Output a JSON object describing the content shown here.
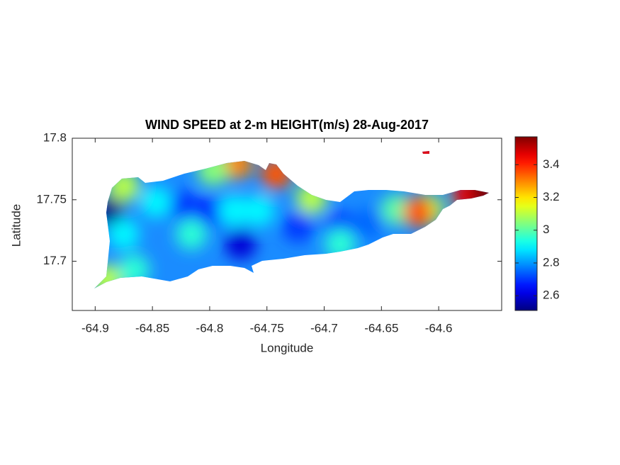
{
  "chart_data": {
    "type": "contour-map",
    "title": "WIND SPEED at 2-m HEIGHT(m/s) 28-Aug-2017",
    "xlabel": "Longitude",
    "ylabel": "Latitude",
    "xlim": [
      -64.92,
      -64.545
    ],
    "ylim": [
      17.66,
      17.8
    ],
    "xticks": [
      -64.9,
      -64.85,
      -64.8,
      -64.75,
      -64.7,
      -64.65,
      -64.6
    ],
    "yticks": [
      17.7,
      17.75,
      17.8
    ],
    "clim": [
      2.51,
      3.57
    ],
    "cticks": [
      2.6,
      2.8,
      3,
      3.2,
      3.4
    ],
    "colormap": "jet",
    "points": [
      {
        "lon": -64.888,
        "lat": 17.742,
        "value": 2.52
      },
      {
        "lon": -64.797,
        "lat": 17.74,
        "value": 2.65
      },
      {
        "lon": -64.773,
        "lat": 17.714,
        "value": 2.6
      },
      {
        "lon": -64.822,
        "lat": 17.745,
        "value": 2.7
      },
      {
        "lon": -64.723,
        "lat": 17.728,
        "value": 2.7
      },
      {
        "lon": -64.686,
        "lat": 17.728,
        "value": 2.7
      },
      {
        "lon": -64.661,
        "lat": 17.731,
        "value": 2.75
      },
      {
        "lon": -64.779,
        "lat": 17.741,
        "value": 2.9
      },
      {
        "lon": -64.757,
        "lat": 17.741,
        "value": 2.9
      },
      {
        "lon": -64.875,
        "lat": 17.722,
        "value": 2.9
      },
      {
        "lon": -64.816,
        "lat": 17.722,
        "value": 2.95
      },
      {
        "lon": -64.847,
        "lat": 17.748,
        "value": 2.9
      },
      {
        "lon": -64.875,
        "lat": 17.761,
        "value": 3.1
      },
      {
        "lon": -64.89,
        "lat": 17.685,
        "value": 3.1
      },
      {
        "lon": -64.866,
        "lat": 17.693,
        "value": 2.95
      },
      {
        "lon": -64.609,
        "lat": 17.742,
        "value": 3.1
      },
      {
        "lon": -64.637,
        "lat": 17.742,
        "value": 3.0
      },
      {
        "lon": -64.686,
        "lat": 17.714,
        "value": 2.95
      },
      {
        "lon": -64.618,
        "lat": 17.74,
        "value": 3.35
      },
      {
        "lon": -64.742,
        "lat": 17.771,
        "value": 3.35
      },
      {
        "lon": -64.776,
        "lat": 17.779,
        "value": 3.3
      },
      {
        "lon": -64.575,
        "lat": 17.754,
        "value": 3.45
      },
      {
        "lon": -64.56,
        "lat": 17.756,
        "value": 3.57
      },
      {
        "lon": -64.611,
        "lat": 17.788,
        "value": 3.45
      },
      {
        "lon": -64.711,
        "lat": 17.751,
        "value": 3.1
      },
      {
        "lon": -64.797,
        "lat": 17.774,
        "value": 3.05
      }
    ]
  }
}
